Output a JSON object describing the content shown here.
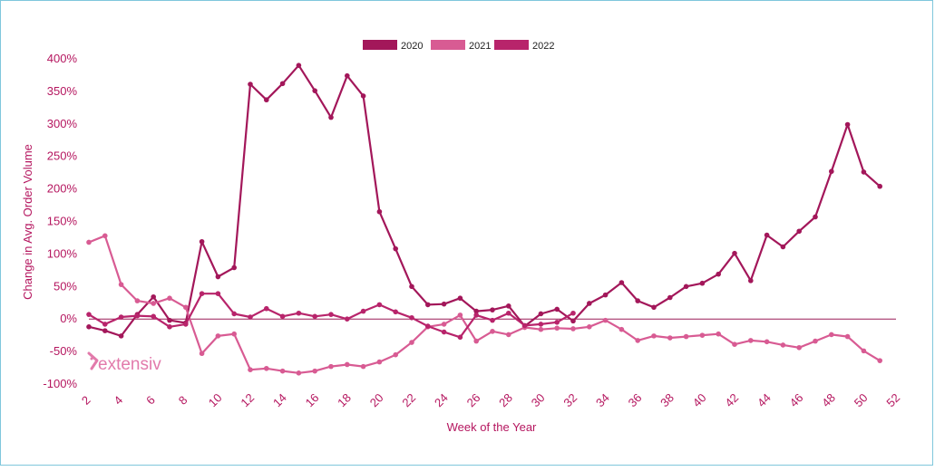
{
  "brand": {
    "name": "extensiv"
  },
  "chart_data": {
    "type": "line",
    "title": "",
    "xlabel": "Week of the Year",
    "ylabel": "Change in Avg. Order Volume",
    "xlim": [
      2,
      52
    ],
    "ylim": [
      -100,
      400
    ],
    "x_ticks": [
      "2",
      "4",
      "6",
      "8",
      "10",
      "12",
      "14",
      "16",
      "18",
      "20",
      "22",
      "24",
      "26",
      "28",
      "30",
      "32",
      "34",
      "36",
      "38",
      "40",
      "42",
      "44",
      "46",
      "48",
      "50",
      "52"
    ],
    "y_ticks": [
      "400%",
      "350%",
      "300%",
      "250%",
      "200%",
      "150%",
      "100%",
      "50%",
      "0%",
      "-50%",
      "-100%"
    ],
    "legend_position": "top-center",
    "grid": false,
    "zero_line": true,
    "series": [
      {
        "name": "2020",
        "color": "#a3175a",
        "x": [
          2,
          3,
          4,
          5,
          6,
          7,
          8,
          9,
          10,
          11,
          12,
          13,
          14,
          15,
          16,
          17,
          18,
          19,
          20,
          21,
          22,
          23,
          24,
          25,
          26,
          27,
          28,
          29,
          30,
          31,
          32,
          33,
          34,
          35,
          36,
          37,
          38,
          39,
          40,
          41,
          42,
          43,
          44,
          45,
          46,
          47,
          48,
          49,
          50,
          51
        ],
        "y": [
          -12,
          -18,
          -26,
          7,
          34,
          -2,
          -6,
          119,
          65,
          79,
          361,
          337,
          362,
          390,
          351,
          310,
          374,
          343,
          165,
          108,
          50,
          22,
          23,
          32,
          12,
          14,
          20,
          -11,
          8,
          15,
          -3,
          24,
          37,
          56,
          28,
          18,
          33,
          50,
          55,
          69,
          101,
          59,
          129,
          111,
          135,
          157,
          227,
          299,
          226,
          204
        ]
      },
      {
        "name": "2021",
        "color": "#d85b93",
        "x": [
          2,
          3,
          4,
          5,
          6,
          7,
          8,
          9,
          10,
          11,
          12,
          13,
          14,
          15,
          16,
          17,
          18,
          19,
          20,
          21,
          22,
          23,
          24,
          25,
          26,
          27,
          28,
          29,
          30,
          31,
          32,
          33,
          34,
          35,
          36,
          37,
          38,
          39,
          40,
          41,
          42,
          43,
          44,
          45,
          46,
          47,
          48,
          49,
          50,
          51
        ],
        "y": [
          118,
          128,
          53,
          28,
          24,
          32,
          18,
          -53,
          -26,
          -23,
          -78,
          -76,
          -80,
          -83,
          -80,
          -73,
          -70,
          -73,
          -66,
          -55,
          -36,
          -12,
          -8,
          6,
          -34,
          -19,
          -24,
          -13,
          -16,
          -14,
          -15,
          -12,
          -2,
          -16,
          -33,
          -26,
          -29,
          -27,
          -25,
          -23,
          -39,
          -33,
          -35,
          -40,
          -44,
          -34,
          -24,
          -27,
          -49,
          -64
        ]
      },
      {
        "name": "2022",
        "color": "#b8246b",
        "x": [
          2,
          3,
          4,
          5,
          6,
          7,
          8,
          9,
          10,
          11,
          12,
          13,
          14,
          15,
          16,
          17,
          18,
          19,
          20,
          21,
          22,
          23,
          24,
          25,
          26,
          27,
          28,
          29,
          30,
          31,
          32
        ],
        "y": [
          7,
          -8,
          3,
          5,
          4,
          -12,
          -8,
          39,
          39,
          8,
          3,
          16,
          4,
          9,
          4,
          7,
          0,
          12,
          22,
          11,
          2,
          -11,
          -20,
          -28,
          6,
          -2,
          9,
          -10,
          -8,
          -5,
          9
        ]
      }
    ]
  }
}
